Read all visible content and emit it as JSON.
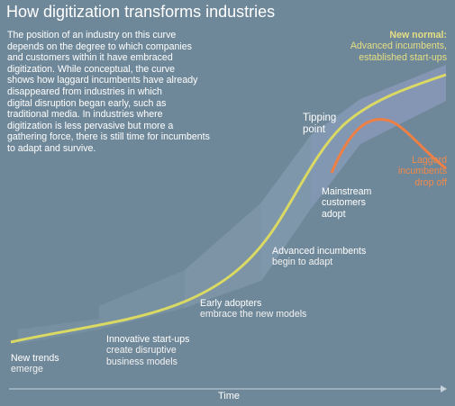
{
  "title": "How digitization transforms industries",
  "intro_lines": [
    "The position of an industry on this curve",
    "depends on the degree to which companies",
    "and customers within it have embraced",
    "digitization. While conceptual, the curve",
    "shows how laggard incumbents have already",
    "disappeared from industries in which",
    "digital disruption began early, such as",
    "traditional media. In industries where",
    "digitization is less pervasive but more a",
    "gathering force, there is still time for incumbents",
    "to adapt and survive."
  ],
  "stages": {
    "new_trends": [
      "New trends",
      "emerge"
    ],
    "innovative": [
      "Innovative start-ups",
      "create disruptive",
      "business models"
    ],
    "early": [
      "Early adopters",
      "embrace the new models"
    ],
    "advanced": [
      "Advanced incumbents",
      "begin to adapt"
    ],
    "mainstream": [
      "Mainstream",
      "customers",
      "adopt"
    ],
    "tipping": [
      "Tipping",
      "point"
    ]
  },
  "new_normal": {
    "heading": "New normal:",
    "lines": [
      "Advanced incumbents,",
      "established start-ups"
    ]
  },
  "laggard": [
    "Laggard",
    "incumbents",
    "drop off"
  ],
  "axis_label": "Time",
  "colors": {
    "background": "#6f8899",
    "main_curve": "#d9d964",
    "laggard_curve": "#ee7f45",
    "band": "#8a9fb3"
  }
}
